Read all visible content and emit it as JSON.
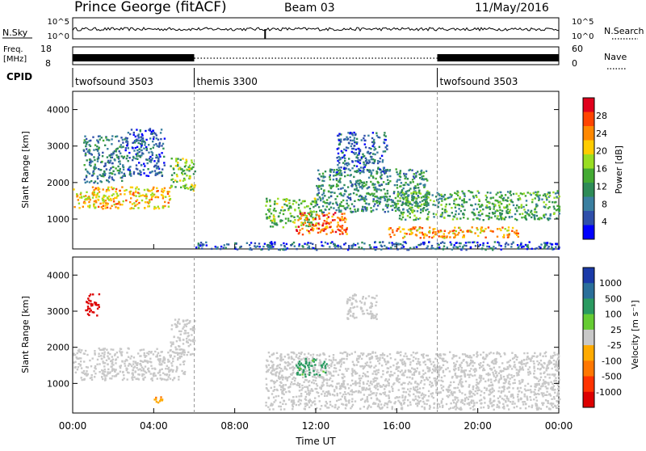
{
  "header": {
    "radar": "Prince George (fitACF)",
    "beam": "Beam 03",
    "date": "11/May/2016"
  },
  "noise_panel": {
    "left_label": "N.Sky",
    "right_label": "N.Search",
    "left_ticks": [
      "10^5",
      "10^0"
    ],
    "right_ticks": [
      "10^5",
      "10^0"
    ]
  },
  "freq_panel": {
    "left_label_line1": "Freq.",
    "left_label_line2": "[MHz]",
    "left_ticks": [
      "18",
      "8"
    ],
    "right_label": "Nave",
    "right_ticks": [
      "60",
      "0"
    ]
  },
  "cpid": {
    "label": "CPID",
    "segments": [
      {
        "name": "twofsound 3503",
        "start_h": 0,
        "end_h": 6
      },
      {
        "name": "themis 3300",
        "start_h": 6,
        "end_h": 18
      },
      {
        "name": "twofsound 3503",
        "start_h": 18,
        "end_h": 24
      }
    ]
  },
  "power_colorbar": {
    "label": "Power [dB]",
    "ticks": [
      "28",
      "24",
      "20",
      "16",
      "12",
      "8",
      "4"
    ],
    "colors": [
      "#e0001c",
      "#ff4400",
      "#ff8800",
      "#ffcc00",
      "#99dd22",
      "#44aa33",
      "#2e8b57",
      "#3a7fa0",
      "#2f4faa",
      "#0000ff"
    ]
  },
  "velocity_colorbar": {
    "label": "Velocity [m s⁻¹]",
    "ticks": [
      "1000",
      "500",
      "100",
      "25",
      "-25",
      "-100",
      "-500",
      "-1000"
    ],
    "colors": [
      "#1a3aa8",
      "#2a6f9a",
      "#2a9a60",
      "#66cc33",
      "#c8c8c8",
      "#ffaa00",
      "#ff7700",
      "#ff3300",
      "#dd0000"
    ]
  },
  "chart_data": {
    "type": "heatmap",
    "x_axis": {
      "label": "Time UT",
      "range_h": [
        0,
        24
      ],
      "ticks": [
        "00:00",
        "04:00",
        "08:00",
        "12:00",
        "16:00",
        "20:00",
        "00:00"
      ]
    },
    "y_axis": {
      "label": "Slant Range [km]",
      "range": [
        180,
        4500
      ],
      "ticks": [
        "1000",
        "2000",
        "3000",
        "4000"
      ]
    },
    "panels": [
      {
        "name": "Power",
        "units": "dB",
        "scale": [
          0,
          30
        ],
        "regions": [
          {
            "t": [
              0.0,
              4.8
            ],
            "r": [
              1300,
              1900
            ],
            "value": 20
          },
          {
            "t": [
              4.8,
              6.0
            ],
            "r": [
              1800,
              2700
            ],
            "value": 14
          },
          {
            "t": [
              0.5,
              2.5
            ],
            "r": [
              2000,
              3300
            ],
            "value": 8
          },
          {
            "t": [
              2.5,
              4.5
            ],
            "r": [
              2200,
              3500
            ],
            "value": 6
          },
          {
            "t": [
              9.5,
              12.0
            ],
            "r": [
              800,
              1600
            ],
            "value": 14
          },
          {
            "t": [
              11.0,
              13.5
            ],
            "r": [
              600,
              1200
            ],
            "value": 24
          },
          {
            "t": [
              12.0,
              17.5
            ],
            "r": [
              1200,
              2400
            ],
            "value": 10
          },
          {
            "t": [
              13.0,
              15.5
            ],
            "r": [
              2300,
              3400
            ],
            "value": 6
          },
          {
            "t": [
              15.5,
              22.0
            ],
            "r": [
              500,
              800
            ],
            "value": 22
          },
          {
            "t": [
              16.0,
              24.0
            ],
            "r": [
              1000,
              1800
            ],
            "value": 12
          },
          {
            "t": [
              6.0,
              24.0
            ],
            "r": [
              180,
              400
            ],
            "value": 6
          }
        ]
      },
      {
        "name": "Velocity",
        "units": "m s-1",
        "scale": [
          -1000,
          1000
        ],
        "regions": [
          {
            "t": [
              0.0,
              5.5
            ],
            "r": [
              1100,
              2000
            ],
            "value": 0
          },
          {
            "t": [
              4.8,
              6.0
            ],
            "r": [
              1800,
              2800
            ],
            "value": 0
          },
          {
            "t": [
              9.5,
              24.0
            ],
            "r": [
              300,
              1900
            ],
            "value": 0
          },
          {
            "t": [
              13.5,
              15.0
            ],
            "r": [
              2800,
              3500
            ],
            "value": 0
          },
          {
            "t": [
              11.0,
              12.5
            ],
            "r": [
              1200,
              1700
            ],
            "value": 400
          },
          {
            "t": [
              0.6,
              1.3
            ],
            "r": [
              2900,
              3500
            ],
            "value": -900
          },
          {
            "t": [
              4.0,
              4.6
            ],
            "r": [
              450,
              650
            ],
            "value": -300
          }
        ]
      }
    ]
  }
}
